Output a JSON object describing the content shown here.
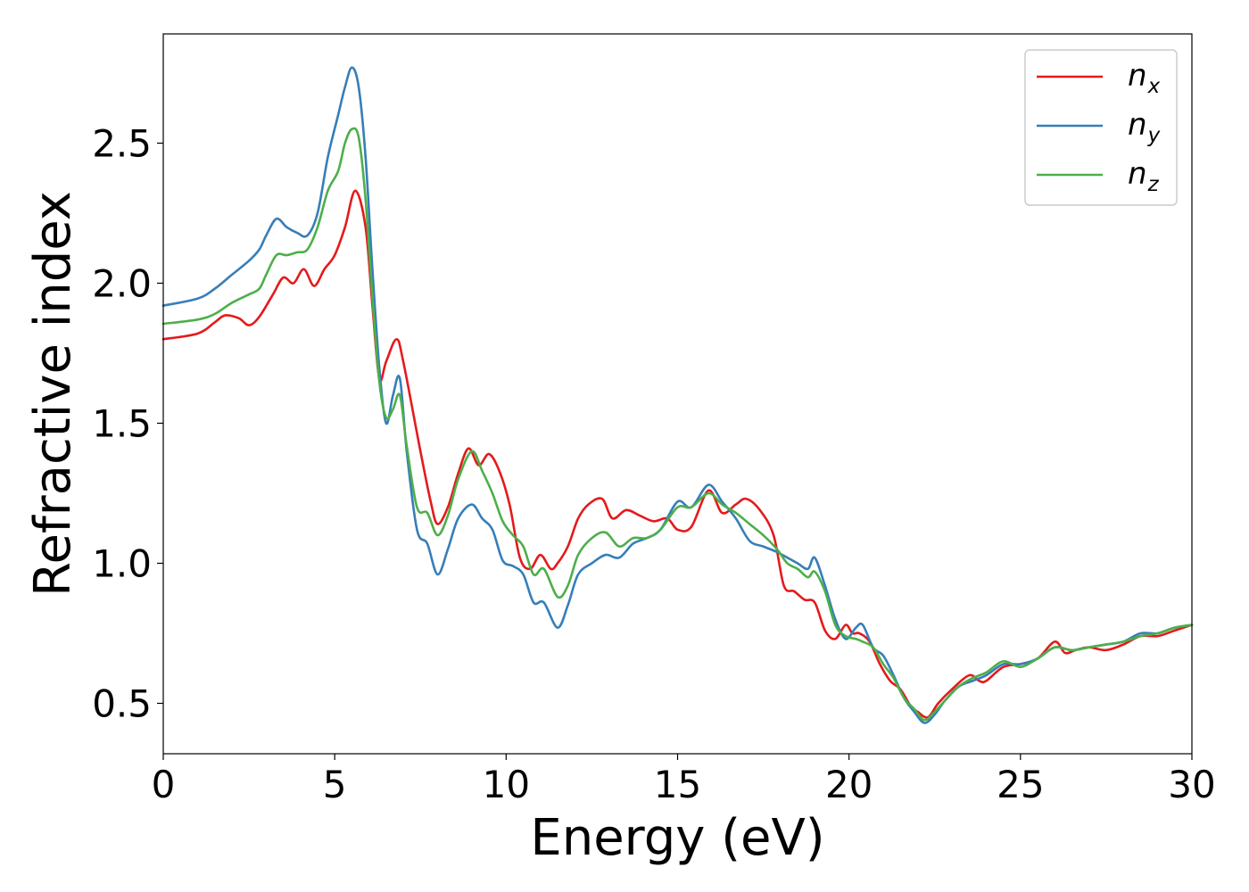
{
  "chart_data": {
    "type": "line",
    "title": "",
    "xlabel": "Energy (eV)",
    "ylabel": "Refractive index",
    "xlim": [
      0,
      30
    ],
    "ylim": [
      0.32,
      2.89
    ],
    "xticks": [
      0,
      5,
      10,
      15,
      20,
      25,
      30
    ],
    "yticks": [
      0.5,
      1.0,
      1.5,
      2.0,
      2.5
    ],
    "xtick_labels": [
      "0",
      "5",
      "10",
      "15",
      "20",
      "25",
      "30"
    ],
    "ytick_labels": [
      "0.5",
      "1.0",
      "1.5",
      "2.0",
      "2.5"
    ],
    "grid": false,
    "legend": "top-right",
    "series": [
      {
        "name": "n_x",
        "label_main": "n",
        "label_sub": "x",
        "color": "#e41a1c",
        "x": [
          0,
          1,
          1.5,
          1.8,
          2.2,
          2.5,
          2.8,
          3.2,
          3.5,
          3.8,
          4.1,
          4.4,
          4.7,
          5.0,
          5.3,
          5.6,
          5.9,
          6.1,
          6.3,
          6.5,
          6.8,
          7.0,
          7.5,
          7.8,
          8.0,
          8.3,
          8.6,
          8.9,
          9.2,
          9.5,
          9.8,
          10.1,
          10.4,
          10.7,
          11.0,
          11.3,
          11.5,
          11.8,
          12.1,
          12.4,
          12.8,
          13.1,
          13.5,
          13.9,
          14.3,
          14.7,
          15.0,
          15.4,
          15.9,
          16.3,
          16.7,
          17.0,
          17.4,
          17.8,
          18.1,
          18.4,
          18.7,
          19.0,
          19.3,
          19.6,
          19.9,
          20.1,
          20.3,
          20.6,
          20.9,
          21.2,
          21.5,
          21.8,
          22.0,
          22.3,
          22.6,
          23.0,
          23.5,
          23.8,
          24.0,
          24.5,
          25.0,
          25.5,
          26.0,
          26.3,
          26.6,
          27.0,
          27.5,
          28.0,
          28.5,
          29.0,
          29.5,
          30.0
        ],
        "values": [
          1.8,
          1.82,
          1.86,
          1.885,
          1.875,
          1.85,
          1.88,
          1.96,
          2.02,
          2.0,
          2.05,
          1.99,
          2.05,
          2.1,
          2.2,
          2.33,
          2.2,
          1.92,
          1.66,
          1.72,
          1.8,
          1.72,
          1.4,
          1.22,
          1.14,
          1.2,
          1.32,
          1.41,
          1.35,
          1.39,
          1.33,
          1.21,
          1.02,
          0.98,
          1.03,
          0.98,
          1.0,
          1.06,
          1.16,
          1.21,
          1.23,
          1.16,
          1.19,
          1.17,
          1.15,
          1.16,
          1.12,
          1.13,
          1.26,
          1.18,
          1.21,
          1.23,
          1.19,
          1.1,
          0.92,
          0.9,
          0.87,
          0.86,
          0.76,
          0.73,
          0.78,
          0.75,
          0.75,
          0.72,
          0.64,
          0.58,
          0.55,
          0.49,
          0.47,
          0.45,
          0.5,
          0.55,
          0.6,
          0.58,
          0.58,
          0.63,
          0.64,
          0.66,
          0.72,
          0.68,
          0.69,
          0.7,
          0.69,
          0.71,
          0.74,
          0.74,
          0.76,
          0.78
        ]
      },
      {
        "name": "n_y",
        "label_main": "n",
        "label_sub": "y",
        "color": "#377eb8",
        "x": [
          0,
          1,
          1.5,
          2.0,
          2.5,
          2.8,
          3.0,
          3.3,
          3.6,
          3.9,
          4.2,
          4.5,
          4.8,
          5.1,
          5.3,
          5.5,
          5.7,
          5.9,
          6.1,
          6.3,
          6.5,
          6.7,
          6.9,
          7.1,
          7.4,
          7.7,
          8.0,
          8.3,
          8.6,
          9.0,
          9.3,
          9.6,
          9.9,
          10.2,
          10.5,
          10.8,
          11.1,
          11.5,
          11.8,
          12.1,
          12.5,
          12.9,
          13.3,
          13.7,
          14.1,
          14.5,
          15.0,
          15.4,
          15.9,
          16.3,
          16.7,
          17.1,
          17.5,
          17.9,
          18.2,
          18.5,
          18.8,
          19.0,
          19.3,
          19.6,
          19.9,
          20.2,
          20.4,
          20.7,
          21.0,
          21.3,
          21.6,
          21.9,
          22.2,
          22.5,
          22.8,
          23.2,
          23.6,
          24.0,
          24.5,
          25.0,
          25.5,
          26.0,
          26.5,
          27.0,
          27.5,
          28.0,
          28.5,
          29.0,
          29.5,
          30.0
        ],
        "values": [
          1.92,
          1.945,
          1.98,
          2.03,
          2.08,
          2.12,
          2.17,
          2.23,
          2.2,
          2.18,
          2.17,
          2.25,
          2.45,
          2.6,
          2.7,
          2.77,
          2.7,
          2.45,
          2.05,
          1.7,
          1.5,
          1.6,
          1.66,
          1.4,
          1.12,
          1.07,
          0.96,
          1.05,
          1.16,
          1.21,
          1.16,
          1.12,
          1.01,
          0.99,
          0.96,
          0.86,
          0.86,
          0.77,
          0.85,
          0.96,
          1.0,
          1.03,
          1.02,
          1.07,
          1.09,
          1.12,
          1.22,
          1.2,
          1.28,
          1.22,
          1.16,
          1.08,
          1.06,
          1.04,
          1.02,
          1.0,
          0.98,
          1.02,
          0.92,
          0.8,
          0.73,
          0.77,
          0.78,
          0.7,
          0.67,
          0.6,
          0.52,
          0.47,
          0.43,
          0.46,
          0.51,
          0.56,
          0.58,
          0.6,
          0.64,
          0.64,
          0.66,
          0.7,
          0.69,
          0.7,
          0.71,
          0.72,
          0.75,
          0.75,
          0.77,
          0.78
        ]
      },
      {
        "name": "n_z",
        "label_main": "n",
        "label_sub": "z",
        "color": "#4daf4a",
        "x": [
          0,
          1,
          1.5,
          2.0,
          2.5,
          2.8,
          3.0,
          3.3,
          3.6,
          3.9,
          4.2,
          4.5,
          4.8,
          5.1,
          5.3,
          5.5,
          5.7,
          5.9,
          6.1,
          6.3,
          6.5,
          6.7,
          6.9,
          7.1,
          7.4,
          7.7,
          8.0,
          8.3,
          8.6,
          9.0,
          9.3,
          9.6,
          9.9,
          10.2,
          10.5,
          10.8,
          11.1,
          11.5,
          11.8,
          12.1,
          12.5,
          12.9,
          13.3,
          13.7,
          14.1,
          14.5,
          15.0,
          15.4,
          15.9,
          16.3,
          16.7,
          17.1,
          17.5,
          17.9,
          18.2,
          18.5,
          18.8,
          19.0,
          19.3,
          19.6,
          19.9,
          20.2,
          20.4,
          20.7,
          21.0,
          21.3,
          21.6,
          21.9,
          22.2,
          22.5,
          22.8,
          23.2,
          23.6,
          24.0,
          24.5,
          25.0,
          25.5,
          26.0,
          26.5,
          27.0,
          27.5,
          28.0,
          28.5,
          29.0,
          29.5,
          30.0
        ],
        "values": [
          1.855,
          1.87,
          1.89,
          1.93,
          1.96,
          1.98,
          2.03,
          2.1,
          2.1,
          2.11,
          2.12,
          2.2,
          2.33,
          2.4,
          2.5,
          2.55,
          2.52,
          2.3,
          1.95,
          1.65,
          1.52,
          1.55,
          1.6,
          1.42,
          1.2,
          1.18,
          1.1,
          1.17,
          1.3,
          1.4,
          1.33,
          1.25,
          1.15,
          1.1,
          1.06,
          0.96,
          0.98,
          0.88,
          0.92,
          1.03,
          1.09,
          1.11,
          1.06,
          1.09,
          1.09,
          1.12,
          1.2,
          1.2,
          1.25,
          1.21,
          1.18,
          1.14,
          1.1,
          1.05,
          1.0,
          0.98,
          0.95,
          0.97,
          0.9,
          0.78,
          0.74,
          0.73,
          0.72,
          0.7,
          0.64,
          0.59,
          0.52,
          0.48,
          0.44,
          0.47,
          0.51,
          0.56,
          0.59,
          0.61,
          0.65,
          0.63,
          0.66,
          0.7,
          0.69,
          0.7,
          0.71,
          0.72,
          0.74,
          0.75,
          0.77,
          0.78
        ]
      }
    ]
  }
}
